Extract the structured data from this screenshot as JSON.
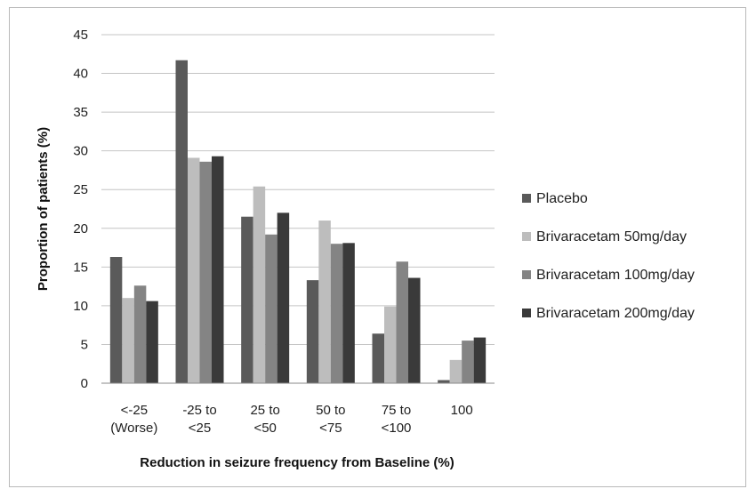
{
  "chart_data": {
    "type": "bar",
    "title": "",
    "xlabel": "Reduction in seizure frequency from Baseline (%)",
    "ylabel": "Proportion of patients (%)",
    "ylim": [
      0,
      45
    ],
    "yticks": [
      0,
      5,
      10,
      15,
      20,
      25,
      30,
      35,
      40,
      45
    ],
    "grid": true,
    "legend_position": "right",
    "categories": [
      [
        "<-25",
        "(Worse)"
      ],
      [
        "-25 to",
        "<25"
      ],
      [
        "25 to",
        "<50"
      ],
      [
        "50 to",
        "<75"
      ],
      [
        "75 to",
        "<100"
      ],
      [
        "100"
      ]
    ],
    "series": [
      {
        "name": "Placebo",
        "color": "#5a5a5a",
        "values": [
          16.3,
          41.7,
          21.5,
          13.3,
          6.4,
          0.4
        ]
      },
      {
        "name": "Brivaracetam 50mg/day",
        "color": "#bdbdbd",
        "values": [
          11.0,
          29.1,
          25.4,
          21.0,
          9.9,
          3.0
        ]
      },
      {
        "name": "Brivaracetam 100mg/day",
        "color": "#848484",
        "values": [
          12.6,
          28.6,
          19.2,
          18.0,
          15.7,
          5.5
        ]
      },
      {
        "name": "Brivaracetam 200mg/day",
        "color": "#3a3a3a",
        "values": [
          10.6,
          29.3,
          22.0,
          18.1,
          13.6,
          5.9
        ]
      }
    ]
  }
}
